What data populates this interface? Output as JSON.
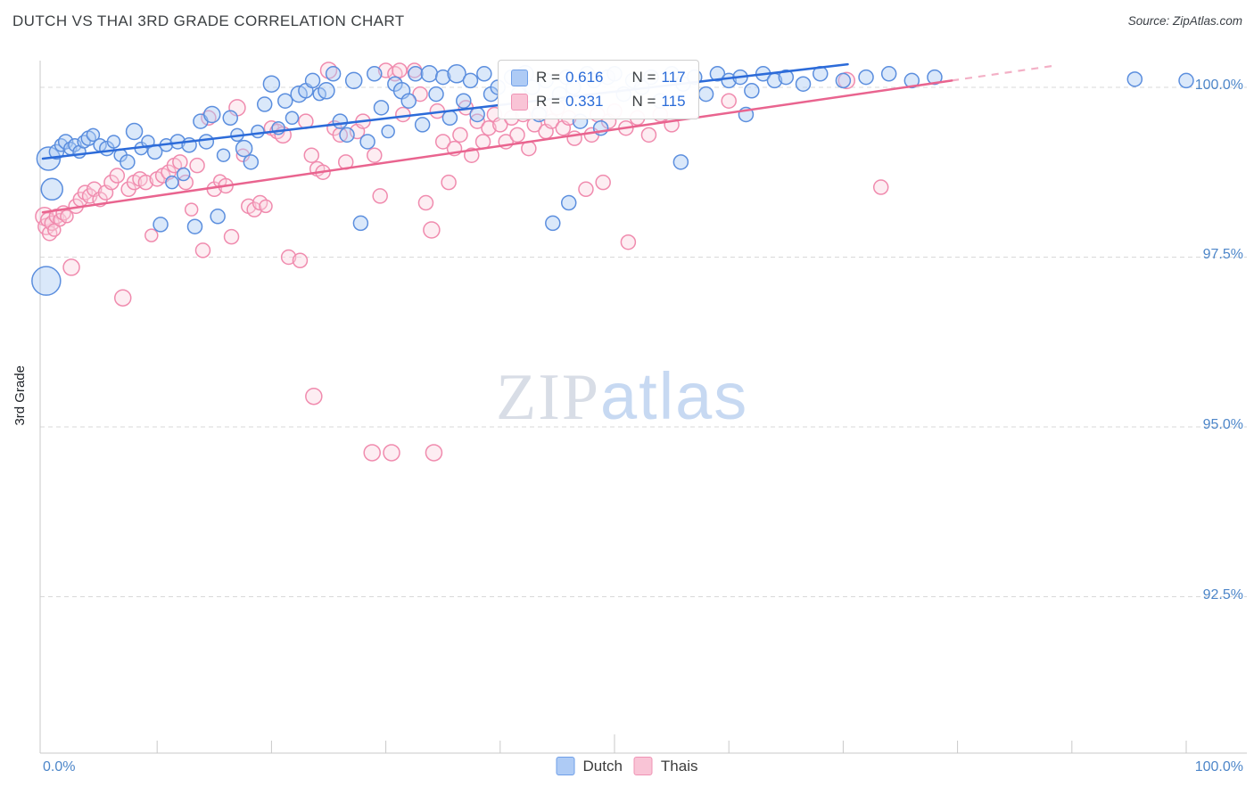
{
  "header": {
    "title": "DUTCH VS THAI 3RD GRADE CORRELATION CHART",
    "source": "Source: ZipAtlas.com"
  },
  "watermark": {
    "part1": "ZIP",
    "part2": "atlas"
  },
  "stats": {
    "dutch": {
      "r_label": "R =",
      "r_value": "0.616",
      "n_label": "N =",
      "n_value": "117"
    },
    "thais": {
      "r_label": "R =",
      "r_value": "0.331",
      "n_label": "N =",
      "n_value": "115"
    }
  },
  "chart_data": {
    "type": "scatter",
    "title": "DUTCH VS THAI 3RD GRADE CORRELATION CHART",
    "xlabel": "",
    "ylabel": "3rd Grade",
    "x_range": [
      0,
      100
    ],
    "y_range": [
      90.2,
      100.4
    ],
    "y_ticks": [
      100.0,
      97.5,
      95.0,
      92.5
    ],
    "y_tick_labels": [
      "100.0%",
      "97.5%",
      "95.0%",
      "92.5%"
    ],
    "x_tick_labels": [
      "0.0%",
      "100.0%"
    ],
    "grid": "dashed-horizontal",
    "legend_position": "bottom-center",
    "series": [
      {
        "name": "Dutch",
        "R": 0.616,
        "N": 117,
        "color": "#5b8ede",
        "fill": "rgba(174,203,245,0.45)",
        "trend_color": "#2c6bd9",
        "points": [
          [
            0.3,
            97.15,
            16
          ],
          [
            0.5,
            98.95,
            13
          ],
          [
            0.8,
            98.5,
            12
          ],
          [
            1.2,
            99.05,
            8
          ],
          [
            1.6,
            99.15,
            7
          ],
          [
            2.0,
            99.2,
            8
          ],
          [
            2.4,
            99.1,
            7
          ],
          [
            2.8,
            99.15,
            7
          ],
          [
            3.2,
            99.05,
            7
          ],
          [
            3.6,
            99.2,
            7
          ],
          [
            4.0,
            99.25,
            8
          ],
          [
            4.4,
            99.3,
            7
          ],
          [
            5.0,
            99.15,
            7
          ],
          [
            5.6,
            99.1,
            8
          ],
          [
            6.2,
            99.2,
            7
          ],
          [
            6.8,
            99.0,
            7
          ],
          [
            7.4,
            98.9,
            8
          ],
          [
            8.0,
            99.35,
            9
          ],
          [
            8.6,
            99.1,
            7
          ],
          [
            9.2,
            99.2,
            7
          ],
          [
            9.8,
            99.05,
            8
          ],
          [
            10.3,
            97.98,
            8
          ],
          [
            10.8,
            99.15,
            7
          ],
          [
            11.3,
            98.6,
            7
          ],
          [
            11.8,
            99.2,
            8
          ],
          [
            12.3,
            98.72,
            7
          ],
          [
            12.8,
            99.15,
            8
          ],
          [
            13.3,
            97.95,
            8
          ],
          [
            13.8,
            99.5,
            8
          ],
          [
            14.3,
            99.2,
            8
          ],
          [
            14.8,
            99.6,
            9
          ],
          [
            15.3,
            98.1,
            8
          ],
          [
            15.8,
            99.0,
            7
          ],
          [
            16.4,
            99.55,
            8
          ],
          [
            17.0,
            99.3,
            7
          ],
          [
            17.6,
            99.1,
            9
          ],
          [
            18.2,
            98.9,
            8
          ],
          [
            18.8,
            99.35,
            7
          ],
          [
            19.4,
            99.75,
            8
          ],
          [
            20.0,
            100.05,
            9
          ],
          [
            20.6,
            99.4,
            7
          ],
          [
            21.2,
            99.8,
            8
          ],
          [
            21.8,
            99.55,
            7
          ],
          [
            22.4,
            99.9,
            9
          ],
          [
            23.0,
            99.95,
            8
          ],
          [
            23.6,
            100.1,
            8
          ],
          [
            24.2,
            99.9,
            7
          ],
          [
            24.8,
            99.95,
            9
          ],
          [
            25.4,
            100.2,
            8
          ],
          [
            26.0,
            99.5,
            8
          ],
          [
            26.6,
            99.3,
            8
          ],
          [
            27.2,
            100.1,
            9
          ],
          [
            27.8,
            98.0,
            8
          ],
          [
            28.4,
            99.2,
            8
          ],
          [
            29.0,
            100.2,
            8
          ],
          [
            29.6,
            99.7,
            8
          ],
          [
            30.2,
            99.35,
            7
          ],
          [
            30.8,
            100.05,
            8
          ],
          [
            31.4,
            99.95,
            9
          ],
          [
            32.0,
            99.8,
            8
          ],
          [
            32.6,
            100.2,
            8
          ],
          [
            33.2,
            99.45,
            8
          ],
          [
            33.8,
            100.2,
            9
          ],
          [
            34.4,
            99.9,
            8
          ],
          [
            35.0,
            100.15,
            8
          ],
          [
            35.6,
            99.55,
            8
          ],
          [
            36.2,
            100.2,
            10
          ],
          [
            36.8,
            99.8,
            8
          ],
          [
            37.4,
            100.1,
            8
          ],
          [
            38.0,
            99.6,
            8
          ],
          [
            38.6,
            100.2,
            8
          ],
          [
            39.2,
            99.9,
            8
          ],
          [
            39.8,
            100.0,
            8
          ],
          [
            44.6,
            98.0,
            8
          ],
          [
            41.0,
            100.15,
            8
          ],
          [
            41.6,
            99.9,
            8
          ],
          [
            42.2,
            100.2,
            9
          ],
          [
            42.8,
            100.0,
            8
          ],
          [
            43.4,
            99.6,
            8
          ],
          [
            44.0,
            100.1,
            8
          ],
          [
            45.2,
            99.9,
            8
          ],
          [
            45.8,
            100.15,
            8
          ],
          [
            46.4,
            100.0,
            8
          ],
          [
            47.0,
            99.5,
            8
          ],
          [
            47.6,
            100.2,
            8
          ],
          [
            48.2,
            100.1,
            8
          ],
          [
            48.8,
            99.4,
            8
          ],
          [
            49.4,
            100.15,
            8
          ],
          [
            50.0,
            100.2,
            8
          ],
          [
            50.8,
            99.9,
            8
          ],
          [
            51.6,
            100.1,
            8
          ],
          [
            52.4,
            100.0,
            8
          ],
          [
            53.2,
            100.15,
            8
          ],
          [
            54.0,
            99.8,
            8
          ],
          [
            55.0,
            100.2,
            8
          ],
          [
            56.0,
            100.05,
            8
          ],
          [
            57.0,
            100.15,
            8
          ],
          [
            58.0,
            99.9,
            8
          ],
          [
            59.0,
            100.2,
            8
          ],
          [
            60.0,
            100.1,
            8
          ],
          [
            61.0,
            100.15,
            8
          ],
          [
            62.0,
            99.95,
            8
          ],
          [
            63.0,
            100.2,
            8
          ],
          [
            64.0,
            100.1,
            8
          ],
          [
            65.0,
            100.15,
            8
          ],
          [
            66.5,
            100.05,
            8
          ],
          [
            68.0,
            100.2,
            8
          ],
          [
            70.0,
            100.1,
            8
          ],
          [
            72.0,
            100.15,
            8
          ],
          [
            74.0,
            100.2,
            8
          ],
          [
            76.0,
            100.1,
            8
          ],
          [
            78.0,
            100.15,
            8
          ],
          [
            95.5,
            100.12,
            8
          ],
          [
            100,
            100.1,
            8
          ],
          [
            55.8,
            98.9,
            8
          ],
          [
            46.0,
            98.3,
            8
          ],
          [
            61.5,
            99.6,
            8
          ]
        ]
      },
      {
        "name": "Thais",
        "R": 0.331,
        "N": 115,
        "color": "#f08bae",
        "fill": "rgba(251,209,223,0.4)",
        "trend_color": "#e9648f",
        "points": [
          [
            0.15,
            98.1,
            10
          ],
          [
            0.3,
            97.95,
            9
          ],
          [
            0.45,
            98.05,
            8
          ],
          [
            0.6,
            97.85,
            8
          ],
          [
            0.8,
            98.0,
            8
          ],
          [
            1.0,
            97.9,
            7
          ],
          [
            1.2,
            98.1,
            8
          ],
          [
            1.5,
            98.05,
            7
          ],
          [
            1.8,
            98.15,
            8
          ],
          [
            2.1,
            98.1,
            7
          ],
          [
            2.5,
            97.35,
            9
          ],
          [
            2.9,
            98.25,
            8
          ],
          [
            3.3,
            98.35,
            8
          ],
          [
            3.7,
            98.45,
            8
          ],
          [
            4.1,
            98.4,
            8
          ],
          [
            4.5,
            98.5,
            8
          ],
          [
            5.0,
            98.35,
            8
          ],
          [
            5.5,
            98.45,
            8
          ],
          [
            6.0,
            98.6,
            8
          ],
          [
            6.5,
            98.7,
            8
          ],
          [
            7.0,
            96.9,
            9
          ],
          [
            7.5,
            98.5,
            8
          ],
          [
            8.0,
            98.6,
            8
          ],
          [
            8.5,
            98.65,
            8
          ],
          [
            9.0,
            98.6,
            8
          ],
          [
            9.5,
            97.82,
            7
          ],
          [
            10.0,
            98.65,
            8
          ],
          [
            10.5,
            98.7,
            8
          ],
          [
            11.0,
            98.75,
            8
          ],
          [
            11.5,
            98.85,
            8
          ],
          [
            12.0,
            98.9,
            8
          ],
          [
            12.5,
            98.6,
            8
          ],
          [
            13.0,
            98.2,
            7
          ],
          [
            13.5,
            98.85,
            8
          ],
          [
            14.0,
            97.6,
            8
          ],
          [
            14.5,
            99.55,
            8
          ],
          [
            15.0,
            98.5,
            8
          ],
          [
            15.5,
            98.62,
            7
          ],
          [
            16.0,
            98.55,
            8
          ],
          [
            16.5,
            97.8,
            8
          ],
          [
            17.0,
            99.7,
            9
          ],
          [
            17.5,
            99.0,
            7
          ],
          [
            18.0,
            98.25,
            8
          ],
          [
            18.5,
            98.2,
            8
          ],
          [
            19.0,
            98.3,
            8
          ],
          [
            19.5,
            98.25,
            7
          ],
          [
            20.0,
            99.4,
            8
          ],
          [
            20.5,
            99.35,
            8
          ],
          [
            21.0,
            99.3,
            9
          ],
          [
            21.5,
            97.5,
            8
          ],
          [
            23.7,
            95.45,
            9
          ],
          [
            22.5,
            97.45,
            8
          ],
          [
            23.0,
            99.5,
            8
          ],
          [
            23.5,
            99.0,
            8
          ],
          [
            24.0,
            98.8,
            8
          ],
          [
            24.5,
            98.75,
            8
          ],
          [
            25.0,
            100.25,
            9
          ],
          [
            25.5,
            99.4,
            8
          ],
          [
            26.0,
            99.3,
            8
          ],
          [
            26.5,
            98.9,
            8
          ],
          [
            28.8,
            94.62,
            9
          ],
          [
            27.5,
            99.35,
            8
          ],
          [
            28.0,
            99.5,
            8
          ],
          [
            30.5,
            94.62,
            9
          ],
          [
            29.0,
            99.0,
            8
          ],
          [
            29.5,
            98.4,
            8
          ],
          [
            30.0,
            100.25,
            8
          ],
          [
            30.8,
            100.2,
            8
          ],
          [
            31.2,
            100.25,
            8
          ],
          [
            31.5,
            99.6,
            8
          ],
          [
            34.2,
            94.62,
            9
          ],
          [
            32.5,
            100.25,
            8
          ],
          [
            33.0,
            99.9,
            8
          ],
          [
            33.5,
            98.3,
            8
          ],
          [
            34.0,
            97.9,
            9
          ],
          [
            34.5,
            99.65,
            8
          ],
          [
            35.0,
            99.2,
            8
          ],
          [
            35.5,
            98.6,
            8
          ],
          [
            36.0,
            99.1,
            8
          ],
          [
            36.5,
            99.3,
            8
          ],
          [
            37.0,
            99.7,
            8
          ],
          [
            37.5,
            99.0,
            8
          ],
          [
            38.0,
            99.5,
            8
          ],
          [
            38.5,
            99.2,
            8
          ],
          [
            39.0,
            99.4,
            8
          ],
          [
            39.5,
            99.6,
            8
          ],
          [
            40.0,
            99.45,
            8
          ],
          [
            40.5,
            99.2,
            8
          ],
          [
            41.0,
            99.55,
            8
          ],
          [
            41.5,
            99.3,
            8
          ],
          [
            42.0,
            99.6,
            8
          ],
          [
            42.5,
            99.1,
            8
          ],
          [
            43.0,
            99.45,
            8
          ],
          [
            43.5,
            99.65,
            8
          ],
          [
            44.0,
            99.35,
            8
          ],
          [
            44.5,
            99.5,
            8
          ],
          [
            45.0,
            99.7,
            8
          ],
          [
            45.5,
            99.4,
            8
          ],
          [
            46.0,
            99.55,
            8
          ],
          [
            46.5,
            99.25,
            8
          ],
          [
            51.2,
            97.72,
            8
          ],
          [
            47.5,
            98.5,
            8
          ],
          [
            48.0,
            99.3,
            8
          ],
          [
            48.5,
            99.6,
            8
          ],
          [
            49.0,
            98.6,
            8
          ],
          [
            49.5,
            99.5,
            8
          ],
          [
            50.0,
            99.65,
            8
          ],
          [
            51.0,
            99.4,
            8
          ],
          [
            52.0,
            99.55,
            8
          ],
          [
            53.0,
            99.3,
            8
          ],
          [
            54.0,
            99.6,
            8
          ],
          [
            55.0,
            99.45,
            8
          ],
          [
            73.3,
            98.53,
            8
          ],
          [
            60.0,
            99.8,
            8
          ],
          [
            70.3,
            100.1,
            9
          ]
        ]
      }
    ],
    "trend_lines": [
      {
        "series": "Dutch",
        "x1": 0,
        "y1": 98.95,
        "x2": 70.4,
        "y2": 100.34
      },
      {
        "series": "Thais",
        "x1": 0,
        "y1": 98.16,
        "x2": 79.5,
        "y2": 100.1,
        "dash": {
          "x2": 88.5,
          "y2": 100.32
        }
      }
    ]
  }
}
